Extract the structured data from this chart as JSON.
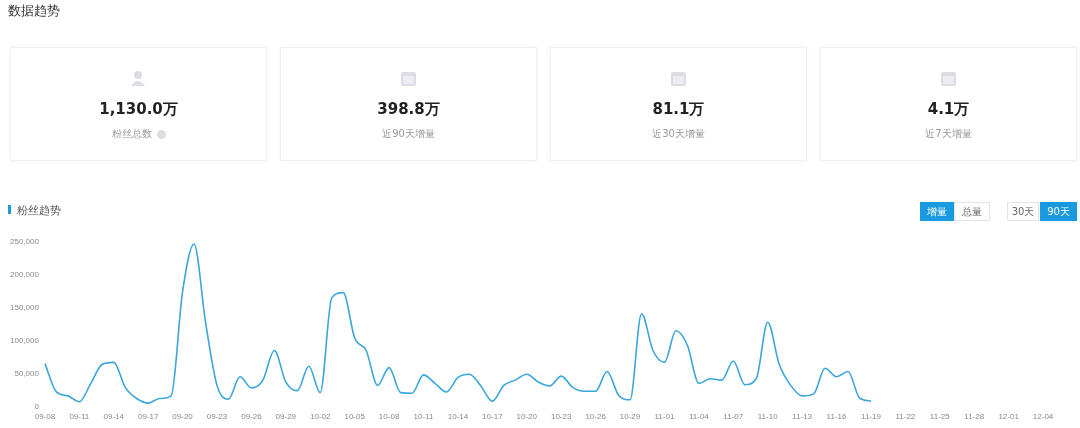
{
  "chart_data": [
    {
      "type": "other",
      "title": "数据趋势",
      "annotations": [
        "1,130.0万",
        "粉丝总数",
        "398.8万",
        "近90天增量",
        "81.1万",
        "近30天增量",
        "4.1万",
        "近7天增量"
      ]
    },
    {
      "type": "line",
      "title": "粉丝趋势",
      "annotations": [
        "增量",
        "总量",
        "30天",
        "90天"
      ],
      "categories": [
        "09-08",
        null,
        null,
        "09-11",
        null,
        null,
        "09-14",
        null,
        null,
        "09-17",
        null,
        null,
        "09-20",
        null,
        null,
        "09-23",
        null,
        null,
        "09-26",
        null,
        null,
        "09-29",
        null,
        null,
        "10-02",
        null,
        null,
        "10-05",
        null,
        null,
        "10-08",
        null,
        null,
        "10-11",
        null,
        null,
        "10-14",
        null,
        null,
        "10-17",
        null,
        null,
        "10-20",
        null,
        null,
        "10-23",
        null,
        null,
        "10-26",
        null,
        null,
        "10-29",
        null,
        null,
        "11-01",
        null,
        null,
        "11-04",
        null,
        null,
        "11-07",
        null,
        null,
        "11-10",
        null,
        null,
        "11-13",
        null,
        null,
        "11-16",
        null,
        null,
        "11-19",
        null,
        null,
        "11-22",
        null,
        null,
        "11-25",
        null,
        null,
        "11-28",
        null,
        null,
        "12-01",
        null,
        null,
        "12-04",
        null,
        null
      ],
      "series": [
        {
          "color": "#3aa6da",
          "values": [
            65000,
            22000,
            16000,
            7000,
            35000,
            64000,
            67000,
            29000,
            12000,
            5000,
            12000,
            16000,
            175000,
            247000,
            128000,
            32000,
            11000,
            45000,
            28000,
            40000,
            85000,
            37000,
            24000,
            61000,
            21000,
            165000,
            173000,
            104000,
            85000,
            32000,
            59000,
            21000,
            20000,
            48000,
            35000,
            22000,
            44000,
            49000,
            31000,
            8000,
            32000,
            40000,
            49000,
            37000,
            31000,
            46000,
            29000,
            23000,
            23000,
            53000,
            17000,
            10000,
            141000,
            85000,
            67000,
            115000,
            93000,
            35000,
            42000,
            40000,
            69000,
            33000,
            42000,
            128000,
            64000,
            32000,
            16000,
            19000,
            58000,
            45000,
            53000,
            13000,
            8000,
            null,
            null,
            null,
            null,
            null,
            null,
            null,
            null,
            null,
            null,
            null,
            null,
            null,
            null,
            null,
            null,
            null
          ]
        }
      ],
      "ylim": [
        0,
        250000
      ],
      "yticks": [
        {
          "value": 0,
          "label": "0"
        },
        {
          "value": 50000,
          "label": "50,000"
        },
        {
          "value": 100000,
          "label": "100,000"
        },
        {
          "value": 150000,
          "label": "150,000"
        },
        {
          "value": 200000,
          "label": "200,000"
        },
        {
          "value": 250000,
          "label": "250,000"
        }
      ],
      "marker": "none",
      "line_style": "solid",
      "grid": false,
      "legend": false
    }
  ]
}
